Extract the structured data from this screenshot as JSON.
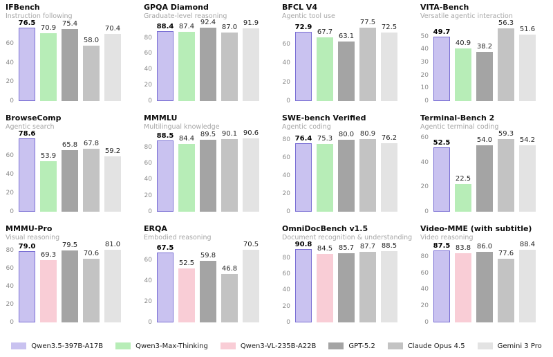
{
  "page": {
    "background": "#ffffff"
  },
  "legend": {
    "items": [
      {
        "label": "Qwen3.5-397B-A17B",
        "color": "#c9c2f0",
        "edge": "#7a6fd4"
      },
      {
        "label": "Qwen3-Max-Thinking",
        "color": "#b7edb7"
      },
      {
        "label": "Qwen3-VL-235B-A22B",
        "color": "#f9cdd6"
      },
      {
        "label": "GPT-5.2",
        "color": "#a4a4a4"
      },
      {
        "label": "Claude Opus 4.5",
        "color": "#c3c3c3"
      },
      {
        "label": "Gemini 3 Pro",
        "color": "#e3e3e3"
      }
    ]
  },
  "chart_data": [
    {
      "type": "bar",
      "title": "IFBench",
      "subtitle": "Instruction following",
      "yticks": [
        0,
        20,
        40,
        60
      ],
      "ylim": [
        0,
        81
      ],
      "grid": false,
      "legend_position": "bottom-shared",
      "series": [
        {
          "name": "Qwen3.5-397B-A17B",
          "value": 76.5,
          "label": "76.5",
          "highlight": true
        },
        {
          "name": "Qwen3-Max-Thinking",
          "value": 70.9,
          "label": "70.9"
        },
        {
          "name": "GPT-5.2",
          "value": 75.4,
          "label": "75.4"
        },
        {
          "name": "Claude Opus 4.5",
          "value": 58.0,
          "label": "58.0"
        },
        {
          "name": "Gemini 3 Pro",
          "value": 70.4,
          "label": "70.4"
        }
      ]
    },
    {
      "type": "bar",
      "title": "GPQA Diamond",
      "subtitle": "Graduate-level reasoning",
      "yticks": [
        0,
        20,
        40,
        60,
        80
      ],
      "ylim": [
        0,
        98
      ],
      "grid": false,
      "legend_position": "bottom-shared",
      "series": [
        {
          "name": "Qwen3.5-397B-A17B",
          "value": 88.4,
          "label": "88.4",
          "highlight": true
        },
        {
          "name": "Qwen3-Max-Thinking",
          "value": 87.4,
          "label": "87.4"
        },
        {
          "name": "GPT-5.2",
          "value": 92.4,
          "label": "92.4"
        },
        {
          "name": "Claude Opus 4.5",
          "value": 87.0,
          "label": "87.0"
        },
        {
          "name": "Gemini 3 Pro",
          "value": 91.9,
          "label": "91.9"
        }
      ]
    },
    {
      "type": "bar",
      "title": "BFCL V4",
      "subtitle": "Agentic tool use",
      "yticks": [
        0,
        20,
        40,
        60
      ],
      "ylim": [
        0,
        82
      ],
      "grid": false,
      "legend_position": "bottom-shared",
      "series": [
        {
          "name": "Qwen3.5-397B-A17B",
          "value": 72.9,
          "label": "72.9",
          "highlight": true
        },
        {
          "name": "Qwen3-Max-Thinking",
          "value": 67.7,
          "label": "67.7"
        },
        {
          "name": "GPT-5.2",
          "value": 63.1,
          "label": "63.1"
        },
        {
          "name": "Claude Opus 4.5",
          "value": 77.5,
          "label": "77.5"
        },
        {
          "name": "Gemini 3 Pro",
          "value": 72.5,
          "label": "72.5"
        }
      ]
    },
    {
      "type": "bar",
      "title": "VITA-Bench",
      "subtitle": "Versatile agentic interaction",
      "yticks": [
        0,
        10,
        20,
        30,
        40,
        50
      ],
      "ylim": [
        0,
        60
      ],
      "grid": false,
      "legend_position": "bottom-shared",
      "series": [
        {
          "name": "Qwen3.5-397B-A17B",
          "value": 49.7,
          "label": "49.7",
          "highlight": true
        },
        {
          "name": "Qwen3-Max-Thinking",
          "value": 40.9,
          "label": "40.9"
        },
        {
          "name": "GPT-5.2",
          "value": 38.2,
          "label": "38.2"
        },
        {
          "name": "Claude Opus 4.5",
          "value": 56.3,
          "label": "56.3"
        },
        {
          "name": "Gemini 3 Pro",
          "value": 51.6,
          "label": "51.6"
        }
      ]
    },
    {
      "type": "bar",
      "title": "BrowseComp",
      "subtitle": "Agentic search",
      "yticks": [
        0,
        20,
        40,
        60
      ],
      "ylim": [
        0,
        83
      ],
      "grid": false,
      "legend_position": "bottom-shared",
      "series": [
        {
          "name": "Qwen3.5-397B-A17B",
          "value": 78.6,
          "label": "78.6",
          "highlight": true
        },
        {
          "name": "Qwen3-Max-Thinking",
          "value": 53.9,
          "label": "53.9"
        },
        {
          "name": "GPT-5.2",
          "value": 65.8,
          "label": "65.8"
        },
        {
          "name": "Claude Opus 4.5",
          "value": 67.8,
          "label": "67.8"
        },
        {
          "name": "Gemini 3 Pro",
          "value": 59.2,
          "label": "59.2"
        }
      ]
    },
    {
      "type": "bar",
      "title": "MMMLU",
      "subtitle": "Multilingual knowledge",
      "yticks": [
        0,
        20,
        40,
        60,
        80
      ],
      "ylim": [
        0,
        96
      ],
      "grid": false,
      "legend_position": "bottom-shared",
      "series": [
        {
          "name": "Qwen3.5-397B-A17B",
          "value": 88.5,
          "label": "88.5",
          "highlight": true
        },
        {
          "name": "Qwen3-Max-Thinking",
          "value": 84.4,
          "label": "84.4"
        },
        {
          "name": "GPT-5.2",
          "value": 89.5,
          "label": "89.5"
        },
        {
          "name": "Claude Opus 4.5",
          "value": 90.1,
          "label": "90.1"
        },
        {
          "name": "Gemini 3 Pro",
          "value": 90.6,
          "label": "90.6"
        }
      ]
    },
    {
      "type": "bar",
      "title": "SWE-bench Verified",
      "subtitle": "Agentic coding",
      "yticks": [
        0,
        20,
        40,
        60,
        80
      ],
      "ylim": [
        0,
        86
      ],
      "grid": false,
      "legend_position": "bottom-shared",
      "series": [
        {
          "name": "Qwen3.5-397B-A17B",
          "value": 76.4,
          "label": "76.4",
          "highlight": true
        },
        {
          "name": "Qwen3-Max-Thinking",
          "value": 75.3,
          "label": "75.3"
        },
        {
          "name": "GPT-5.2",
          "value": 80.0,
          "label": "80.0"
        },
        {
          "name": "Claude Opus 4.5",
          "value": 80.9,
          "label": "80.9"
        },
        {
          "name": "Gemini 3 Pro",
          "value": 76.2,
          "label": "76.2"
        }
      ]
    },
    {
      "type": "bar",
      "title": "Terminal-Bench 2",
      "subtitle": "Agentic terminal coding",
      "yticks": [
        0,
        20,
        40,
        60
      ],
      "ylim": [
        0,
        63
      ],
      "grid": false,
      "legend_position": "bottom-shared",
      "series": [
        {
          "name": "Qwen3.5-397B-A17B",
          "value": 52.5,
          "label": "52.5",
          "highlight": true
        },
        {
          "name": "Qwen3-Max-Thinking",
          "value": 22.5,
          "label": "22.5"
        },
        {
          "name": "GPT-5.2",
          "value": 54.0,
          "label": "54.0"
        },
        {
          "name": "Claude Opus 4.5",
          "value": 59.3,
          "label": "59.3"
        },
        {
          "name": "Gemini 3 Pro",
          "value": 54.2,
          "label": "54.2"
        }
      ]
    },
    {
      "type": "bar",
      "title": "MMMU-Pro",
      "subtitle": "Visual reasoning",
      "yticks": [
        0,
        20,
        40,
        60,
        80
      ],
      "ylim": [
        0,
        86
      ],
      "grid": false,
      "legend_position": "bottom-shared",
      "series": [
        {
          "name": "Qwen3.5-397B-A17B",
          "value": 79.0,
          "label": "79.0",
          "highlight": true
        },
        {
          "name": "Qwen3-VL-235B-A22B",
          "value": 69.3,
          "label": "69.3"
        },
        {
          "name": "GPT-5.2",
          "value": 79.5,
          "label": "79.5"
        },
        {
          "name": "Claude Opus 4.5",
          "value": 70.6,
          "label": "70.6"
        },
        {
          "name": "Gemini 3 Pro",
          "value": 81.0,
          "label": "81.0"
        }
      ]
    },
    {
      "type": "bar",
      "title": "ERQA",
      "subtitle": "Embodied reasoning",
      "yticks": [
        0,
        20,
        40,
        60
      ],
      "ylim": [
        0,
        75
      ],
      "grid": false,
      "legend_position": "bottom-shared",
      "series": [
        {
          "name": "Qwen3.5-397B-A17B",
          "value": 67.5,
          "label": "67.5",
          "highlight": true
        },
        {
          "name": "Qwen3-VL-235B-A22B",
          "value": 52.5,
          "label": "52.5"
        },
        {
          "name": "GPT-5.2",
          "value": 59.8,
          "label": "59.8"
        },
        {
          "name": "Claude Opus 4.5",
          "value": 46.8,
          "label": "46.8"
        },
        {
          "name": "Gemini 3 Pro",
          "value": 70.5,
          "label": "70.5"
        }
      ]
    },
    {
      "type": "bar",
      "title": "OmniDocBench v1.5",
      "subtitle": "Document recognition & understanding",
      "yticks": [
        0,
        20,
        40,
        60,
        80
      ],
      "ylim": [
        0,
        96
      ],
      "grid": false,
      "legend_position": "bottom-shared",
      "series": [
        {
          "name": "Qwen3.5-397B-A17B",
          "value": 90.8,
          "label": "90.8",
          "highlight": true
        },
        {
          "name": "Qwen3-VL-235B-A22B",
          "value": 84.5,
          "label": "84.5"
        },
        {
          "name": "GPT-5.2",
          "value": 85.7,
          "label": "85.7"
        },
        {
          "name": "Claude Opus 4.5",
          "value": 87.7,
          "label": "87.7"
        },
        {
          "name": "Gemini 3 Pro",
          "value": 88.5,
          "label": "88.5"
        }
      ]
    },
    {
      "type": "bar",
      "title": "Video-MME (with subtitle)",
      "subtitle": "Video reasoning",
      "yticks": [
        0,
        20,
        40,
        60,
        80
      ],
      "ylim": [
        0,
        94
      ],
      "grid": false,
      "legend_position": "bottom-shared",
      "series": [
        {
          "name": "Qwen3.5-397B-A17B",
          "value": 87.5,
          "label": "87.5",
          "highlight": true
        },
        {
          "name": "Qwen3-VL-235B-A22B",
          "value": 83.8,
          "label": "83.8"
        },
        {
          "name": "GPT-5.2",
          "value": 86.0,
          "label": "86.0"
        },
        {
          "name": "Claude Opus 4.5",
          "value": 77.6,
          "label": "77.6"
        },
        {
          "name": "Gemini 3 Pro",
          "value": 88.4,
          "label": "88.4"
        }
      ]
    }
  ]
}
